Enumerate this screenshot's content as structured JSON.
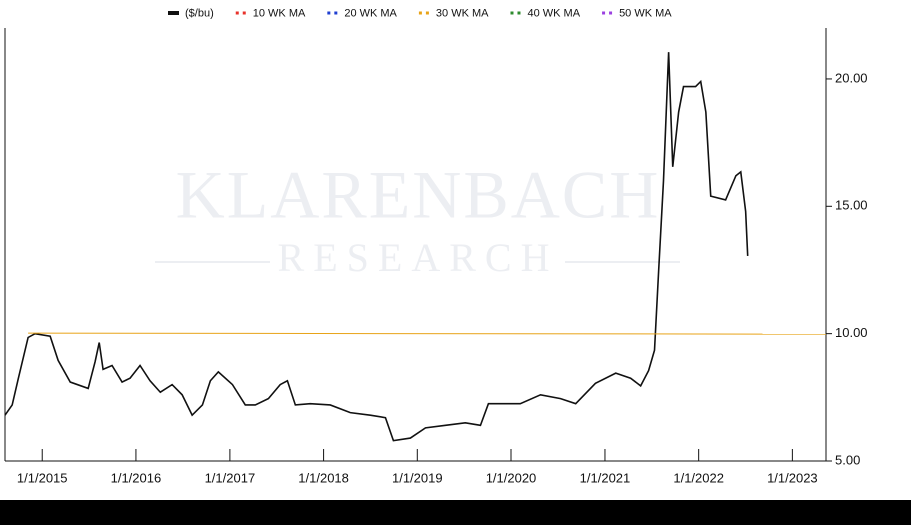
{
  "chart_data": {
    "type": "line",
    "watermark": {
      "line1": "KLARENBACH",
      "line2": "RESEARCH"
    },
    "x": [
      "2014-08-09",
      "2014-09-06",
      "2014-09-29",
      "2014-11-07",
      "2014-12-04",
      "2015-02-01",
      "2015-03-04",
      "2015-04-20",
      "2015-06-29",
      "2015-07-26",
      "2015-08-11",
      "2015-08-26",
      "2015-09-30",
      "2015-11-08",
      "2015-12-09",
      "2016-01-17",
      "2016-02-25",
      "2016-04-05",
      "2016-05-21",
      "2016-06-29",
      "2016-08-07",
      "2016-09-16",
      "2016-10-17",
      "2016-11-17",
      "2017-01-11",
      "2017-03-02",
      "2017-04-10",
      "2017-05-31",
      "2017-07-16",
      "2017-08-13",
      "2017-09-13",
      "2017-11-10",
      "2018-01-27",
      "2018-04-15",
      "2018-07-02",
      "2018-08-30",
      "2018-09-30",
      "2018-12-05",
      "2019-02-02",
      "2019-04-21",
      "2019-07-07",
      "2019-09-04",
      "2019-10-05",
      "2019-12-10",
      "2020-02-06",
      "2020-04-25",
      "2020-07-12",
      "2020-09-09",
      "2020-11-25",
      "2021-02-12",
      "2021-04-11",
      "2021-05-20",
      "2021-06-20",
      "2021-07-13",
      "2021-07-29",
      "2021-08-17",
      "2021-09-06",
      "2021-09-22",
      "2021-10-15",
      "2021-11-03",
      "2021-12-20",
      "2022-01-09",
      "2022-01-29",
      "2022-02-17",
      "2022-04-16",
      "2022-05-26",
      "2022-06-14",
      "2022-07-03",
      "2022-07-11"
    ],
    "series": [
      {
        "name": "($/bu)",
        "color": "#111111",
        "values": [
          6.8,
          7.2,
          8.2,
          9.85,
          10.0,
          9.9,
          8.95,
          8.1,
          7.85,
          8.9,
          9.65,
          8.6,
          8.75,
          8.1,
          8.25,
          8.75,
          8.15,
          7.7,
          8.0,
          7.6,
          6.8,
          7.2,
          8.15,
          8.5,
          8.0,
          7.2,
          7.2,
          7.45,
          8.0,
          8.15,
          7.2,
          7.25,
          7.2,
          6.9,
          6.8,
          6.7,
          5.8,
          5.9,
          6.3,
          6.4,
          6.5,
          6.4,
          7.25,
          7.25,
          7.25,
          7.6,
          7.45,
          7.25,
          8.05,
          8.45,
          8.25,
          7.95,
          8.55,
          9.35,
          12.45,
          16.0,
          21.05,
          16.55,
          18.7,
          19.7,
          19.7,
          19.9,
          18.7,
          15.4,
          15.25,
          16.2,
          16.35,
          14.8,
          13.05
        ]
      },
      {
        "name": "10 WK MA",
        "color": "#e8312a",
        "x": [],
        "values": []
      },
      {
        "name": "20 WK MA",
        "color": "#1f3fd1",
        "x": [],
        "values": []
      },
      {
        "name": "30 WK MA",
        "color": "#e8a317",
        "x": [
          "2014-11-07",
          "2023-05-12"
        ],
        "values": [
          10.02,
          9.98
        ]
      },
      {
        "name": "40 WK MA",
        "color": "#2e8b2e",
        "x": [],
        "values": []
      },
      {
        "name": "50 WK MA",
        "color": "#9b40e0",
        "x": [],
        "values": []
      }
    ],
    "xlim": [
      "2014-08-09",
      "2023-05-12"
    ],
    "xticks": [
      {
        "value": "2015-01-01",
        "label": "1/1/2015"
      },
      {
        "value": "2016-01-01",
        "label": "1/1/2016"
      },
      {
        "value": "2017-01-01",
        "label": "1/1/2017"
      },
      {
        "value": "2018-01-01",
        "label": "1/1/2018"
      },
      {
        "value": "2019-01-01",
        "label": "1/1/2019"
      },
      {
        "value": "2020-01-01",
        "label": "1/1/2020"
      },
      {
        "value": "2021-01-01",
        "label": "1/1/2021"
      },
      {
        "value": "2022-01-01",
        "label": "1/1/2022"
      },
      {
        "value": "2023-01-01",
        "label": "1/1/2023"
      }
    ],
    "ylim": [
      5,
      22
    ],
    "yticks": [
      {
        "value": 5,
        "label": "5.00"
      },
      {
        "value": 10,
        "label": "10.00"
      },
      {
        "value": 15,
        "label": "15.00"
      },
      {
        "value": 20,
        "label": "20.00"
      }
    ],
    "y_axis_side": "right",
    "legend": "top"
  }
}
